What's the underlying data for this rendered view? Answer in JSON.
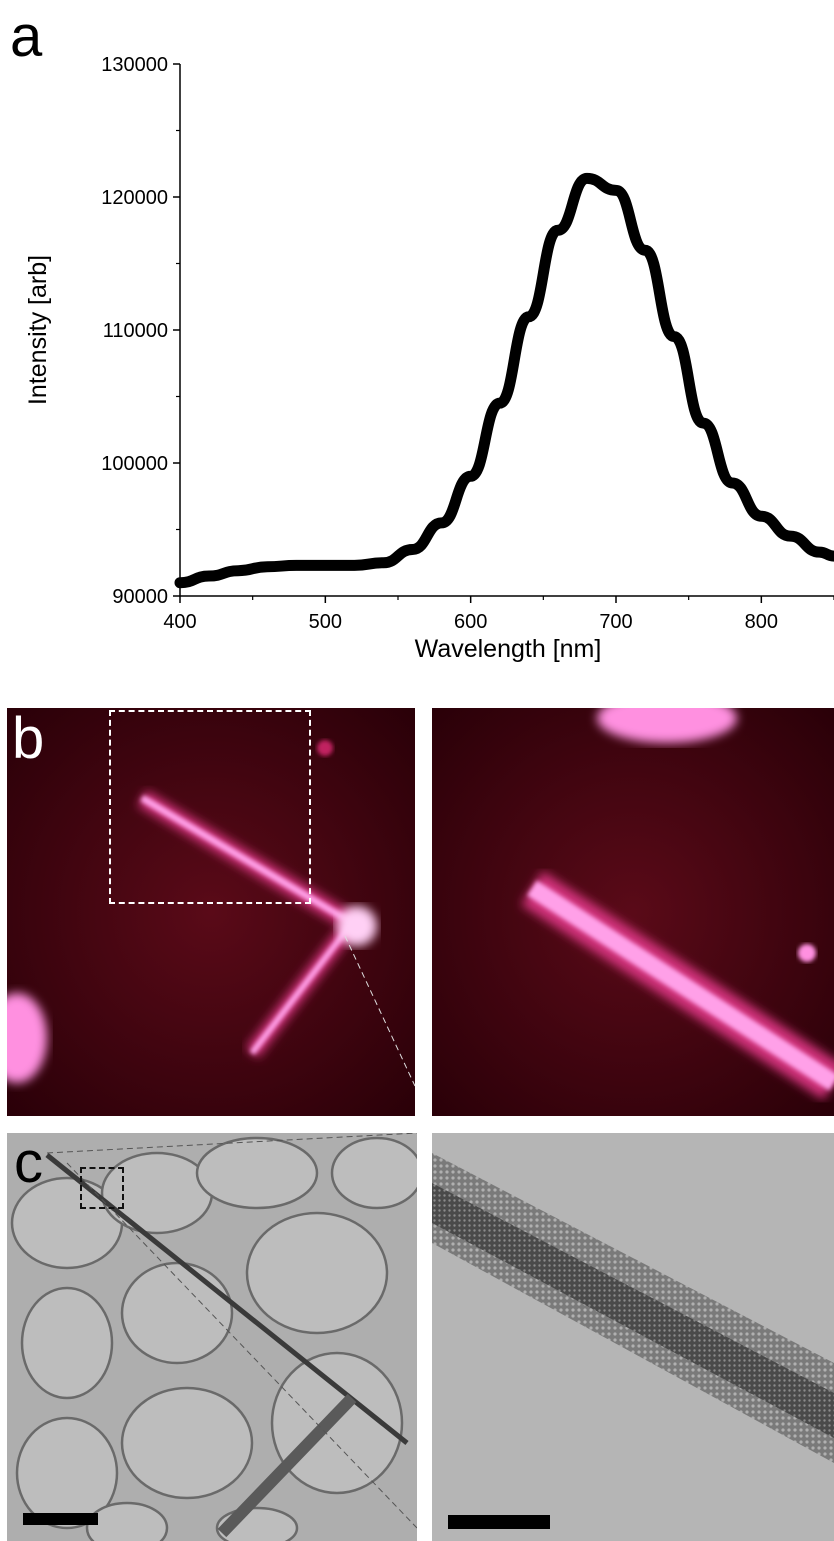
{
  "panels": {
    "a": "a",
    "b": "b",
    "c": "c"
  },
  "chart_data": {
    "type": "line",
    "xlabel": "Wavelength [nm]",
    "ylabel": "Intensity [arb]",
    "xlim": [
      400,
      850
    ],
    "ylim": [
      90000,
      130000
    ],
    "xticks": [
      "400",
      "500",
      "600",
      "700",
      "800"
    ],
    "yticks": [
      "90000",
      "100000",
      "110000",
      "120000",
      "130000"
    ],
    "grid": false,
    "series": [
      {
        "x": [
          400,
          420,
          440,
          460,
          480,
          500,
          520,
          540,
          560,
          580,
          600,
          620,
          640,
          660,
          680,
          700,
          720,
          740,
          760,
          780,
          800,
          820,
          840,
          850
        ],
        "y": [
          91000,
          91500,
          91900,
          92200,
          92300,
          92300,
          92300,
          92500,
          93500,
          95500,
          99000,
          104500,
          111000,
          117500,
          121400,
          120500,
          116000,
          109500,
          103000,
          98500,
          96000,
          94500,
          93300,
          93000
        ]
      }
    ],
    "line_color": "#000000"
  }
}
